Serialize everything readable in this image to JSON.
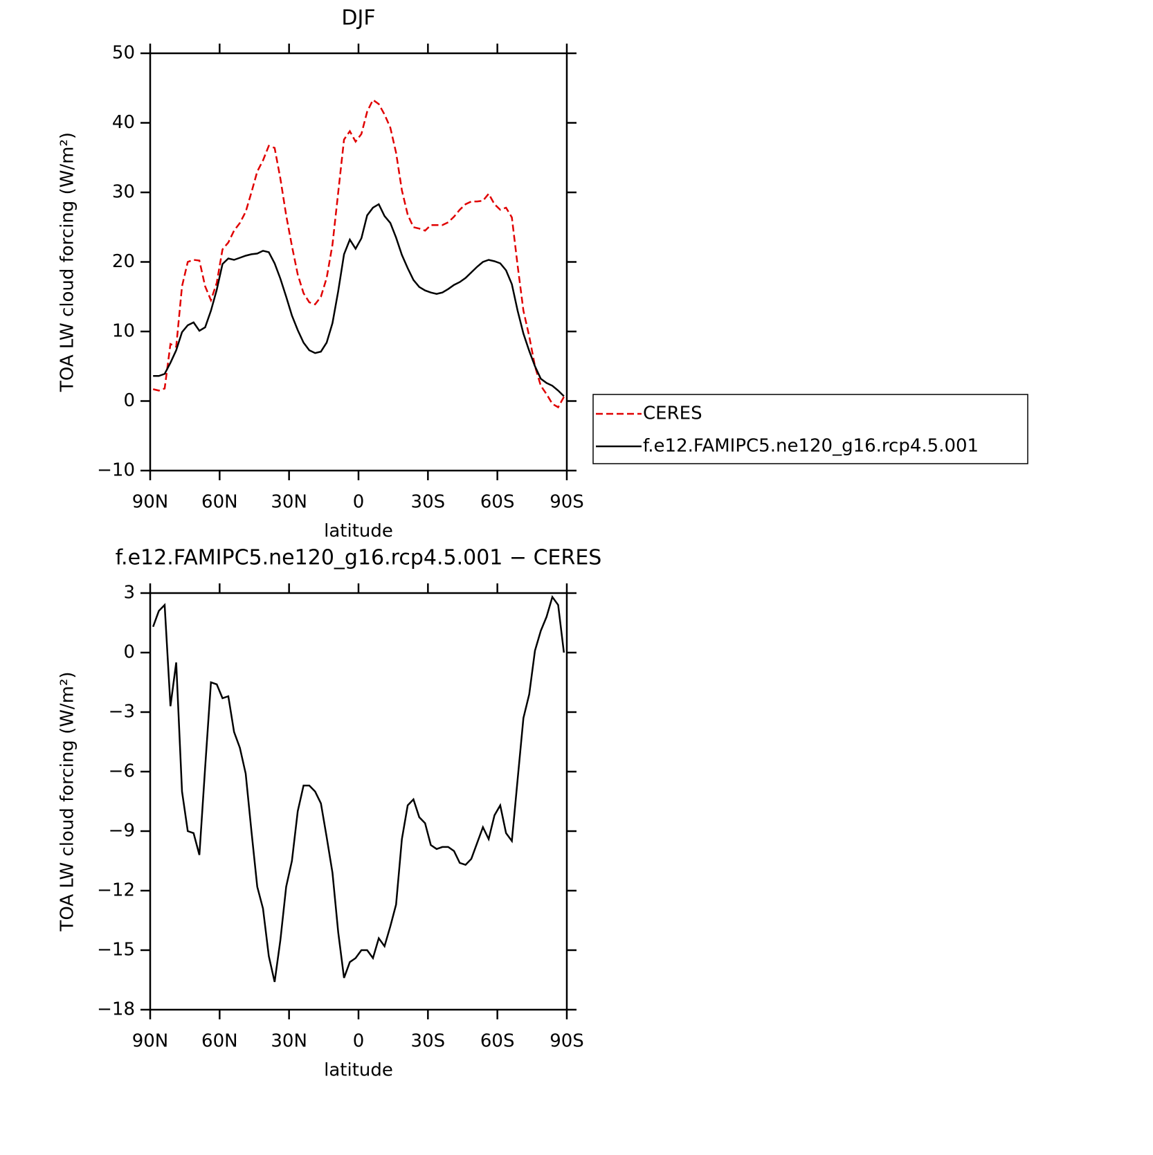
{
  "chart_data": [
    {
      "type": "line",
      "title": "DJF",
      "xlabel": "latitude",
      "ylabel": "TOA LW cloud forcing (W/m²)",
      "x": [
        88.75,
        86.25,
        83.75,
        81.25,
        78.75,
        76.25,
        73.75,
        71.25,
        68.75,
        66.25,
        63.75,
        61.25,
        58.75,
        56.25,
        53.75,
        51.25,
        48.75,
        46.25,
        43.75,
        41.25,
        38.75,
        36.25,
        33.75,
        31.25,
        28.75,
        26.25,
        23.75,
        21.25,
        18.75,
        16.25,
        13.75,
        11.25,
        8.75,
        6.25,
        3.75,
        1.25,
        -1.25,
        -3.75,
        -6.25,
        -8.75,
        -11.25,
        -13.75,
        -16.25,
        -18.75,
        -21.25,
        -23.75,
        -26.25,
        -28.75,
        -31.25,
        -33.75,
        -36.25,
        -38.75,
        -41.25,
        -43.75,
        -46.25,
        -48.75,
        -51.25,
        -53.75,
        -56.25,
        -58.75,
        -61.25,
        -63.75,
        -66.25,
        -68.75,
        -71.25,
        -73.75,
        -76.25,
        -78.75,
        -81.25,
        -83.75,
        -86.25,
        -88.75
      ],
      "xlim": [
        90,
        -90
      ],
      "xticks": [
        {
          "value": 90,
          "label": "90N"
        },
        {
          "value": 60,
          "label": "60N"
        },
        {
          "value": 30,
          "label": "30N"
        },
        0,
        {
          "value": -30,
          "label": "30S"
        },
        {
          "value": -60,
          "label": "60S"
        },
        {
          "value": -90,
          "label": "90S"
        }
      ],
      "ylim": [
        -10,
        50
      ],
      "yticks": [
        {
          "value": -10,
          "label": "−10"
        },
        0,
        10,
        20,
        30,
        40,
        50
      ],
      "series": [
        {
          "name": "CERES",
          "color": "#e00000",
          "dash": true,
          "values": [
            1.7,
            1.5,
            1.8,
            8.2,
            7.8,
            16.5,
            20.0,
            20.3,
            20.2,
            16.5,
            14.5,
            17.0,
            21.8,
            22.8,
            24.5,
            25.6,
            27.2,
            30.0,
            33.0,
            34.6,
            36.7,
            36.4,
            32.0,
            26.7,
            22.3,
            18.2,
            15.5,
            14.2,
            13.9,
            15.0,
            17.7,
            22.5,
            30.0,
            37.6,
            38.8,
            37.3,
            38.4,
            41.6,
            43.3,
            42.7,
            41.2,
            39.3,
            35.7,
            30.3,
            26.8,
            25.0,
            24.8,
            24.5,
            25.3,
            25.3,
            25.3,
            25.7,
            26.5,
            27.5,
            28.3,
            28.7,
            28.7,
            28.8,
            29.8,
            28.3,
            27.5,
            27.8,
            26.4,
            19.5,
            13.0,
            9.3,
            5.0,
            2.2,
            1.0,
            -0.4,
            -0.9,
            0.6
          ]
        },
        {
          "name": "f.e12.FAMIPC5.ne120_g16.rcp4.5.001",
          "color": "#000000",
          "dash": false,
          "values": [
            3.6,
            3.6,
            3.9,
            5.5,
            7.3,
            9.9,
            10.9,
            11.3,
            10.1,
            10.6,
            13.0,
            16.0,
            19.7,
            20.5,
            20.3,
            20.6,
            20.9,
            21.1,
            21.2,
            21.6,
            21.4,
            19.8,
            17.6,
            15.0,
            12.3,
            10.2,
            8.4,
            7.3,
            6.9,
            7.1,
            8.4,
            11.2,
            15.8,
            21.1,
            23.2,
            21.9,
            23.4,
            26.7,
            27.8,
            28.3,
            26.6,
            25.6,
            23.5,
            21.0,
            19.1,
            17.4,
            16.4,
            15.9,
            15.6,
            15.4,
            15.6,
            16.1,
            16.7,
            17.1,
            17.7,
            18.5,
            19.3,
            20.0,
            20.3,
            20.1,
            19.8,
            18.8,
            16.8,
            13.0,
            9.7,
            7.2,
            5.0,
            3.2,
            2.6,
            2.2,
            1.5,
            0.7
          ]
        }
      ]
    },
    {
      "type": "line",
      "title": "f.e12.FAMIPC5.ne120_g16.rcp4.5.001 − CERES",
      "xlabel": "latitude",
      "ylabel": "TOA LW cloud forcing (W/m²)",
      "x": [
        88.75,
        86.25,
        83.75,
        81.25,
        78.75,
        76.25,
        73.75,
        71.25,
        68.75,
        66.25,
        63.75,
        61.25,
        58.75,
        56.25,
        53.75,
        51.25,
        48.75,
        46.25,
        43.75,
        41.25,
        38.75,
        36.25,
        33.75,
        31.25,
        28.75,
        26.25,
        23.75,
        21.25,
        18.75,
        16.25,
        13.75,
        11.25,
        8.75,
        6.25,
        3.75,
        1.25,
        -1.25,
        -3.75,
        -6.25,
        -8.75,
        -11.25,
        -13.75,
        -16.25,
        -18.75,
        -21.25,
        -23.75,
        -26.25,
        -28.75,
        -31.25,
        -33.75,
        -36.25,
        -38.75,
        -41.25,
        -43.75,
        -46.25,
        -48.75,
        -51.25,
        -53.75,
        -56.25,
        -58.75,
        -61.25,
        -63.75,
        -66.25,
        -68.75,
        -71.25,
        -73.75,
        -76.25,
        -78.75,
        -81.25,
        -83.75,
        -86.25,
        -88.75
      ],
      "xlim": [
        90,
        -90
      ],
      "xticks": [
        {
          "value": 90,
          "label": "90N"
        },
        {
          "value": 60,
          "label": "60N"
        },
        {
          "value": 30,
          "label": "30N"
        },
        0,
        {
          "value": -30,
          "label": "30S"
        },
        {
          "value": -60,
          "label": "60S"
        },
        {
          "value": -90,
          "label": "90S"
        }
      ],
      "ylim": [
        -18,
        3
      ],
      "yticks": [
        {
          "value": -18,
          "label": "−18"
        },
        {
          "value": -15,
          "label": "−15"
        },
        {
          "value": -12,
          "label": "−12"
        },
        {
          "value": -9,
          "label": "−9"
        },
        {
          "value": -6,
          "label": "−6"
        },
        {
          "value": -3,
          "label": "−3"
        },
        0,
        3
      ],
      "series": [
        {
          "color": "#000000",
          "dash": false,
          "values": [
            1.3,
            2.1,
            2.4,
            -2.7,
            -0.5,
            -7.0,
            -9.0,
            -9.1,
            -10.2,
            -5.8,
            -1.5,
            -1.6,
            -2.3,
            -2.2,
            -4.0,
            -4.8,
            -6.1,
            -9.0,
            -11.8,
            -12.9,
            -15.3,
            -16.6,
            -14.5,
            -11.8,
            -10.5,
            -8.0,
            -6.7,
            -6.7,
            -7.0,
            -7.6,
            -9.3,
            -11.1,
            -14.1,
            -16.4,
            -15.6,
            -15.4,
            -15.0,
            -15.0,
            -15.4,
            -14.4,
            -14.8,
            -13.8,
            -12.7,
            -9.4,
            -7.7,
            -7.4,
            -8.3,
            -8.6,
            -9.7,
            -9.9,
            -9.8,
            -9.8,
            -10.0,
            -10.6,
            -10.7,
            -10.4,
            -9.6,
            -8.8,
            -9.4,
            -8.2,
            -7.7,
            -9.1,
            -9.5,
            -6.4,
            -3.3,
            -2.1,
            0.1,
            1.1,
            1.8,
            2.8,
            2.4,
            0.0
          ]
        }
      ]
    }
  ]
}
